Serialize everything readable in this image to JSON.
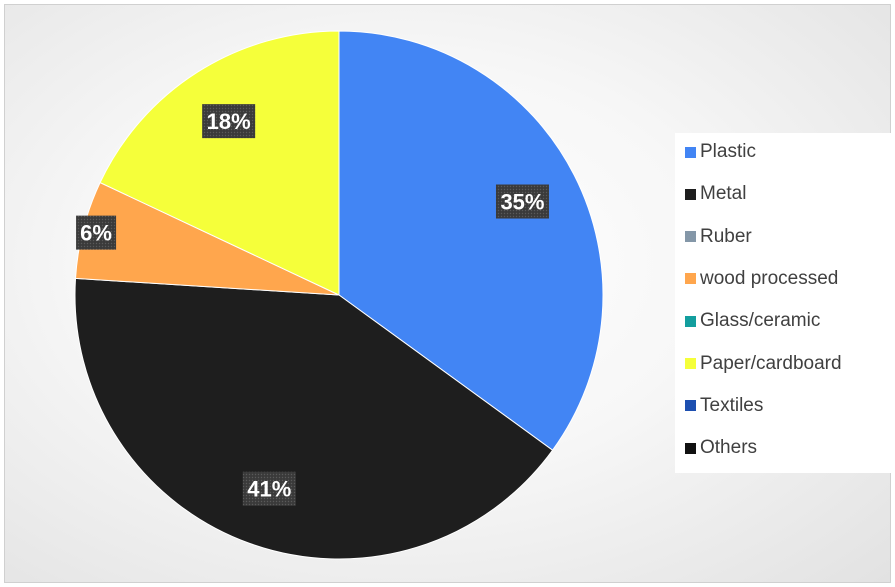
{
  "chart_data": {
    "type": "pie",
    "categories": [
      "Plastic",
      "Metal",
      "Ruber",
      "wood processed",
      "Glass/ceramic",
      "Paper/cardboard",
      "Textiles",
      "Others"
    ],
    "values": [
      35,
      41,
      0,
      6,
      0,
      18,
      0,
      0
    ],
    "data_labels": [
      "35%",
      "41%",
      "",
      "6%",
      "",
      "18%",
      "",
      ""
    ],
    "colors": [
      "#4285F4",
      "#1e1e1e",
      "#8497A8",
      "#FFA64D",
      "#139E9E",
      "#F5FF3A",
      "#1D4FB0",
      "#111111"
    ],
    "legend_position": "right",
    "start_angle_deg": 0,
    "direction": "clockwise"
  }
}
